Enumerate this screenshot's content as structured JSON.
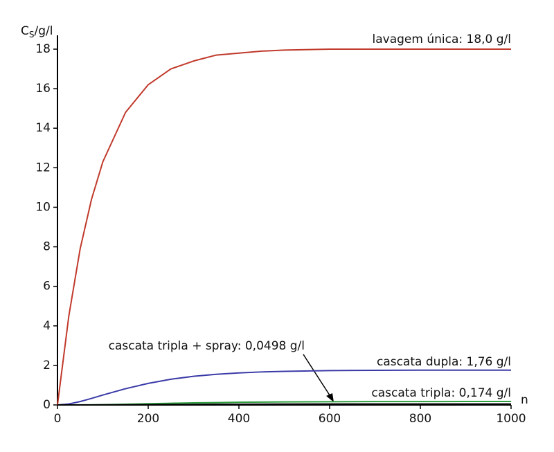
{
  "chart_data": {
    "type": "line",
    "y_label": "C",
    "y_label_sub": "S",
    "y_label_rest": "/g/l",
    "x_label": "n",
    "x": [
      0,
      25,
      50,
      75,
      100,
      150,
      200,
      250,
      300,
      350,
      400,
      450,
      500,
      600,
      700,
      800,
      900,
      1000
    ],
    "series": [
      {
        "name": "lavagem única: 18,0 g/l",
        "color": "#c0392b",
        "values": [
          0,
          4.5,
          7.9,
          10.4,
          12.3,
          14.8,
          16.2,
          17.0,
          17.4,
          17.7,
          17.8,
          17.9,
          17.95,
          18.0,
          18.0,
          18.0,
          18.0,
          18.0
        ]
      },
      {
        "name": "cascata dupla: 1,76 g/l",
        "color": "#3a3aa8",
        "values": [
          0,
          0.05,
          0.17,
          0.33,
          0.5,
          0.82,
          1.09,
          1.3,
          1.45,
          1.55,
          1.62,
          1.67,
          1.7,
          1.74,
          1.75,
          1.76,
          1.76,
          1.76
        ]
      },
      {
        "name": "cascata tripla: 0,174 g/l",
        "color": "#2e9e3e",
        "values": [
          0,
          0,
          0.003,
          0.008,
          0.015,
          0.035,
          0.06,
          0.085,
          0.105,
          0.12,
          0.135,
          0.145,
          0.152,
          0.163,
          0.169,
          0.172,
          0.173,
          0.174
        ]
      },
      {
        "name": "cascata tripla + spray: 0,0498 g/l",
        "color": "#000000",
        "values": [
          0,
          0,
          0,
          0.001,
          0.003,
          0.008,
          0.015,
          0.022,
          0.028,
          0.033,
          0.037,
          0.04,
          0.043,
          0.046,
          0.048,
          0.049,
          0.0495,
          0.0498
        ]
      }
    ],
    "xlim": [
      0,
      1000
    ],
    "xticks": [
      0,
      200,
      400,
      600,
      800,
      1000
    ],
    "ylim": [
      0,
      18
    ],
    "yticks": [
      0,
      2,
      4,
      6,
      8,
      10,
      12,
      14,
      16,
      18
    ]
  }
}
